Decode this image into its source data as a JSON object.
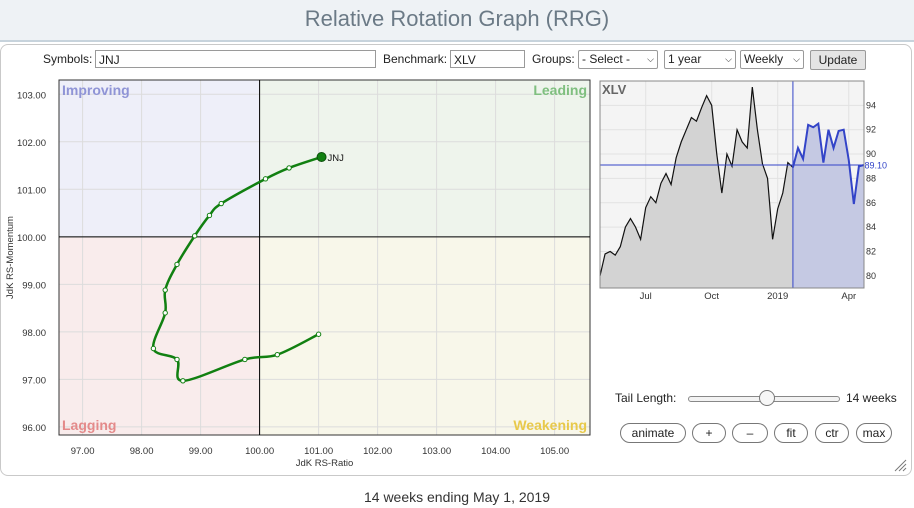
{
  "page_title": "Relative Rotation Graph (RRG)",
  "controls": {
    "symbols_label": "Symbols:",
    "symbols_value": "JNJ",
    "benchmark_label": "Benchmark:",
    "benchmark_value": "XLV",
    "groups_label": "Groups:",
    "groups_value": "- Select -",
    "period_value": "1 year",
    "interval_value": "Weekly",
    "update_label": "Update"
  },
  "tail": {
    "label": "Tail Length:",
    "value_label": "14 weeks",
    "value": 14,
    "min": 1,
    "max": 26
  },
  "buttons": {
    "animate": "animate",
    "plus": "+",
    "minus": "–",
    "fit": "fit",
    "ctr": "ctr",
    "max": "max"
  },
  "footer": "14 weeks ending May 1, 2019",
  "chart_data": [
    {
      "type": "scatter",
      "name": "rrg",
      "xlabel": "JdK RS-Ratio",
      "ylabel": "JdK RS-Momentum",
      "xlim": [
        96.6,
        105.6
      ],
      "ylim": [
        95.83,
        103.3
      ],
      "xticks": [
        97.0,
        98.0,
        99.0,
        100.0,
        101.0,
        102.0,
        103.0,
        104.0,
        105.0
      ],
      "yticks": [
        96.0,
        97.0,
        98.0,
        99.0,
        100.0,
        101.0,
        102.0,
        103.0
      ],
      "xtick_labels": [
        "97.00",
        "98.00",
        "99.00",
        "100.00",
        "101.00",
        "102.00",
        "103.00",
        "104.00",
        "105.00"
      ],
      "ytick_labels": [
        "96.00",
        "97.00",
        "98.00",
        "99.00",
        "100.00",
        "101.00",
        "102.00",
        "103.00"
      ],
      "center": [
        100,
        100
      ],
      "quadrants": {
        "improving": "Improving",
        "leading": "Leading",
        "lagging": "Lagging",
        "weakening": "Weakening"
      },
      "colors": {
        "improving": "#8f94d6",
        "leading": "#7fbf7f",
        "lagging": "#e48a8a",
        "weakening": "#e8c94a",
        "tail": "#118011"
      },
      "series": [
        {
          "name": "JNJ",
          "points": [
            {
              "x": 101.0,
              "y": 97.95
            },
            {
              "x": 100.3,
              "y": 97.52
            },
            {
              "x": 99.75,
              "y": 97.42
            },
            {
              "x": 98.7,
              "y": 96.97
            },
            {
              "x": 98.6,
              "y": 97.42
            },
            {
              "x": 98.2,
              "y": 97.65
            },
            {
              "x": 98.4,
              "y": 98.4
            },
            {
              "x": 98.4,
              "y": 98.88
            },
            {
              "x": 98.6,
              "y": 99.42
            },
            {
              "x": 98.9,
              "y": 100.02
            },
            {
              "x": 99.15,
              "y": 100.45
            },
            {
              "x": 99.35,
              "y": 100.7
            },
            {
              "x": 100.1,
              "y": 101.22
            },
            {
              "x": 100.5,
              "y": 101.45
            },
            {
              "x": 101.05,
              "y": 101.68
            }
          ]
        }
      ]
    },
    {
      "type": "area",
      "name": "benchmark-price",
      "title": "XLV",
      "ylim": [
        79,
        96
      ],
      "yticks": [
        80,
        82,
        84,
        86,
        88,
        90,
        92,
        94
      ],
      "xtick_labels": [
        "Jul",
        "Oct",
        "2019",
        "Apr"
      ],
      "xtick_positions": [
        9,
        22,
        35,
        49
      ],
      "highlight_start": 38,
      "last_value": "89.10",
      "series": [
        {
          "values": [
            80.0,
            81.8,
            82.0,
            81.7,
            82.4,
            84.0,
            84.7,
            84.0,
            83.0,
            85.6,
            86.5,
            86.0,
            87.6,
            88.4,
            87.5,
            89.7,
            91.0,
            92.0,
            93.0,
            92.7,
            93.8,
            94.8,
            94.0,
            90.0,
            86.8,
            90.0,
            89.0,
            92.0,
            91.0,
            90.5,
            95.5,
            92.0,
            89.2,
            88.0,
            83.0,
            85.5,
            86.8,
            89.3,
            88.9,
            90.5,
            89.6,
            92.4,
            92.2,
            92.5,
            89.3,
            92.0,
            90.5,
            91.9,
            92.0,
            89.5,
            85.9,
            89.0,
            89.1
          ]
        }
      ]
    }
  ]
}
